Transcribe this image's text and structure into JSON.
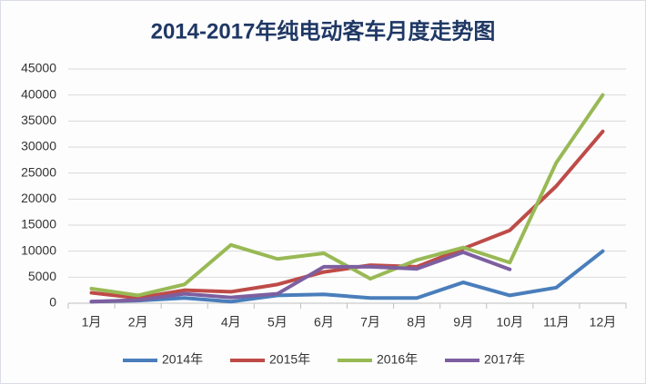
{
  "chart_data": {
    "type": "line",
    "title": "2014-2017年纯电动客车月度走势图",
    "categories": [
      "1月",
      "2月",
      "3月",
      "4月",
      "5月",
      "6月",
      "7月",
      "8月",
      "9月",
      "10月",
      "11月",
      "12月"
    ],
    "series": [
      {
        "name": "2014年",
        "color": "#4a7ebb",
        "values": [
          300,
          500,
          1000,
          300,
          1500,
          1700,
          1000,
          1000,
          4000,
          1500,
          3000,
          10000
        ]
      },
      {
        "name": "2015年",
        "color": "#be4b48",
        "values": [
          2000,
          1000,
          2500,
          2200,
          3600,
          6000,
          7300,
          7000,
          10500,
          14000,
          22500,
          33000
        ]
      },
      {
        "name": "2016年",
        "color": "#98b954",
        "values": [
          2800,
          1500,
          3600,
          11200,
          8500,
          9600,
          4700,
          8300,
          10700,
          7800,
          27000,
          40000
        ]
      },
      {
        "name": "2017年",
        "color": "#7d5fa0",
        "values": [
          300,
          600,
          1800,
          1100,
          1800,
          7000,
          7000,
          6600,
          9800,
          6500,
          null,
          null
        ]
      }
    ],
    "ylim": [
      0,
      45000
    ],
    "yticks": [
      0,
      5000,
      10000,
      15000,
      20000,
      25000,
      30000,
      35000,
      40000,
      45000
    ],
    "grid": true,
    "legend": "bottom"
  }
}
